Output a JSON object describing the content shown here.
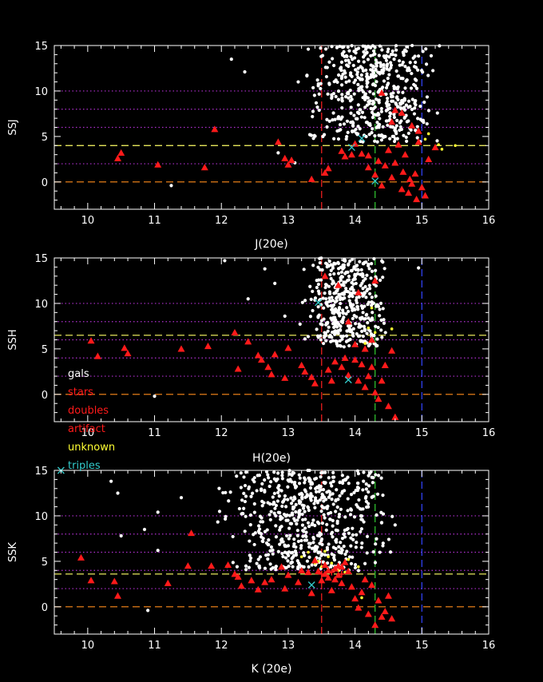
{
  "colors": {
    "background": "#000000",
    "axes": "#ffffff",
    "gals": "#ffffff",
    "stars": "#ff1a1a",
    "doubles": "#ff1a1a",
    "artifact": "#ff1a1a",
    "unknown": "#ffff33",
    "triples": "#33cccc",
    "grid_dotted": "#b030d0",
    "line_orange": "#ff8c1a",
    "line_yellow": "#ffff66",
    "line_red": "#ff2020",
    "line_green": "#33cc33",
    "line_blue": "#3344ff"
  },
  "legend": {
    "items": [
      {
        "label": "gals",
        "color": "#ffffff"
      },
      {
        "label": "stars",
        "color": "#ff1a1a"
      },
      {
        "label": "doubles",
        "color": "#ff1a1a"
      },
      {
        "label": "artifact",
        "color": "#ff1a1a"
      },
      {
        "label": "unknown",
        "color": "#ffff33"
      },
      {
        "label": "triples",
        "color": "#33cccc"
      }
    ]
  },
  "chart_data": [
    {
      "type": "scatter",
      "xlabel": "J(20e)",
      "ylabel": "SSJ",
      "xlim": [
        9.5,
        16
      ],
      "ylim": [
        -3,
        15
      ],
      "xticks": [
        10,
        11,
        12,
        13,
        14,
        15,
        16
      ],
      "yticks": [
        0,
        5,
        10,
        15
      ],
      "hlines": [
        {
          "y": 0,
          "color": "#ff8c1a",
          "style": "dashed"
        },
        {
          "y": 4,
          "color": "#ffff66",
          "style": "dashed"
        },
        {
          "y": 2,
          "color": "#b030d0",
          "style": "dotted"
        },
        {
          "y": 6,
          "color": "#b030d0",
          "style": "dotted"
        },
        {
          "y": 8,
          "color": "#b030d0",
          "style": "dotted"
        },
        {
          "y": 10,
          "color": "#b030d0",
          "style": "dotted"
        }
      ],
      "vlines": [
        {
          "x": 13.5,
          "color": "#ff2020",
          "style": "dashed"
        },
        {
          "x": 14.3,
          "color": "#33cc33",
          "style": "dashed"
        },
        {
          "x": 15.0,
          "color": "#3344ff",
          "style": "dashed"
        }
      ],
      "stars": [
        [
          10.45,
          2.6
        ],
        [
          10.5,
          3.2
        ],
        [
          11.05,
          1.9
        ],
        [
          11.75,
          1.6
        ],
        [
          11.9,
          5.8
        ],
        [
          12.85,
          4.4
        ],
        [
          12.95,
          2.6
        ],
        [
          13.0,
          1.9
        ],
        [
          13.05,
          2.4
        ],
        [
          13.35,
          0.3
        ],
        [
          13.55,
          1.0
        ],
        [
          13.6,
          1.5
        ],
        [
          13.8,
          3.4
        ],
        [
          13.85,
          2.8
        ],
        [
          13.95,
          3.0
        ],
        [
          14.0,
          4.2
        ],
        [
          14.1,
          3.1
        ],
        [
          14.2,
          1.6
        ],
        [
          14.3,
          0.8
        ],
        [
          14.4,
          -0.4
        ],
        [
          14.45,
          1.8
        ],
        [
          14.5,
          3.5
        ],
        [
          14.55,
          0.5
        ],
        [
          14.6,
          2.1
        ],
        [
          14.65,
          4.1
        ],
        [
          14.7,
          -0.8
        ],
        [
          14.72,
          1.1
        ],
        [
          14.75,
          3.0
        ],
        [
          14.8,
          -1.2
        ],
        [
          14.82,
          0.3
        ],
        [
          14.85,
          -0.2
        ],
        [
          14.9,
          0.9
        ],
        [
          14.92,
          -1.9
        ],
        [
          14.95,
          4.4
        ],
        [
          15.0,
          -0.6
        ],
        [
          15.05,
          -1.5
        ],
        [
          15.1,
          2.5
        ],
        [
          15.2,
          3.8
        ],
        [
          14.7,
          7.6
        ],
        [
          14.85,
          6.2
        ],
        [
          14.95,
          5.6
        ],
        [
          14.6,
          7.9
        ],
        [
          14.4,
          9.8
        ],
        [
          14.55,
          6.6
        ],
        [
          14.2,
          2.9
        ],
        [
          14.35,
          2.3
        ]
      ],
      "triples": [
        [
          13.95,
          3.8
        ],
        [
          14.1,
          4.8
        ],
        [
          14.3,
          0.1
        ]
      ],
      "unknown": [
        [
          15.05,
          4.7
        ],
        [
          15.25,
          4.1
        ],
        [
          15.1,
          5.3
        ],
        [
          15.3,
          3.6
        ],
        [
          15.5,
          4.0
        ]
      ],
      "artifact": [],
      "gal_bounds": {
        "xmin": 12.8,
        "xmax": 15.3,
        "ymin": 2.5,
        "ymax": 15
      },
      "gal_count": 520,
      "gal_outliers": [
        [
          11.25,
          -0.4
        ],
        [
          12.15,
          13.5
        ],
        [
          12.35,
          12.1
        ],
        [
          12.85,
          3.2
        ],
        [
          13.1,
          2.1
        ],
        [
          13.15,
          11.0
        ],
        [
          13.3,
          14.6
        ]
      ]
    },
    {
      "type": "scatter",
      "xlabel": "H(20e)",
      "ylabel": "SSH",
      "xlim": [
        9.5,
        16
      ],
      "ylim": [
        -3,
        15
      ],
      "xticks": [
        10,
        11,
        12,
        13,
        14,
        15,
        16
      ],
      "yticks": [
        0,
        5,
        10,
        15
      ],
      "hlines": [
        {
          "y": 0,
          "color": "#ff8c1a",
          "style": "dashed"
        },
        {
          "y": 6.5,
          "color": "#ffff66",
          "style": "dashed"
        },
        {
          "y": 2,
          "color": "#b030d0",
          "style": "dotted"
        },
        {
          "y": 4,
          "color": "#b030d0",
          "style": "dotted"
        },
        {
          "y": 6,
          "color": "#b030d0",
          "style": "dotted"
        },
        {
          "y": 8,
          "color": "#b030d0",
          "style": "dotted"
        },
        {
          "y": 10,
          "color": "#b030d0",
          "style": "dotted"
        }
      ],
      "vlines": [
        {
          "x": 13.5,
          "color": "#ff2020",
          "style": "dashed"
        },
        {
          "x": 14.3,
          "color": "#33cc33",
          "style": "dashed"
        },
        {
          "x": 15.0,
          "color": "#3344ff",
          "style": "dashed"
        }
      ],
      "stars": [
        [
          10.05,
          5.9
        ],
        [
          10.15,
          4.2
        ],
        [
          10.55,
          5.1
        ],
        [
          10.6,
          4.5
        ],
        [
          11.4,
          5.0
        ],
        [
          11.8,
          5.3
        ],
        [
          12.2,
          6.8
        ],
        [
          12.25,
          2.8
        ],
        [
          12.4,
          5.8
        ],
        [
          12.55,
          4.3
        ],
        [
          12.6,
          3.8
        ],
        [
          12.7,
          3.0
        ],
        [
          12.75,
          2.2
        ],
        [
          12.8,
          4.4
        ],
        [
          12.95,
          1.8
        ],
        [
          13.0,
          5.1
        ],
        [
          13.2,
          3.2
        ],
        [
          13.25,
          2.5
        ],
        [
          13.35,
          1.9
        ],
        [
          13.4,
          1.2
        ],
        [
          13.6,
          2.7
        ],
        [
          13.65,
          1.5
        ],
        [
          13.7,
          3.6
        ],
        [
          13.8,
          3.0
        ],
        [
          13.9,
          2.1
        ],
        [
          14.0,
          5.5
        ],
        [
          14.05,
          1.5
        ],
        [
          14.1,
          3.3
        ],
        [
          14.15,
          0.8
        ],
        [
          14.2,
          2.0
        ],
        [
          14.25,
          3.0
        ],
        [
          14.3,
          0.2
        ],
        [
          14.35,
          -0.5
        ],
        [
          14.4,
          1.5
        ],
        [
          14.45,
          3.2
        ],
        [
          14.5,
          -1.3
        ],
        [
          14.55,
          4.8
        ],
        [
          14.6,
          -2.5
        ],
        [
          14.3,
          12.5
        ],
        [
          14.05,
          11.2
        ],
        [
          13.55,
          13.0
        ],
        [
          13.75,
          12.0
        ],
        [
          13.9,
          8.0
        ],
        [
          14.15,
          5.0
        ],
        [
          14.25,
          6.0
        ],
        [
          13.85,
          4.0
        ],
        [
          14.0,
          3.8
        ]
      ],
      "triples": [
        [
          13.45,
          10.1
        ],
        [
          13.9,
          1.6
        ]
      ],
      "unknown": [
        [
          14.2,
          7.3
        ],
        [
          14.25,
          9.5
        ],
        [
          14.3,
          6.8
        ],
        [
          14.55,
          7.2
        ],
        [
          14.15,
          5.6
        ]
      ],
      "artifact": [],
      "gal_bounds": {
        "xmin": 12.9,
        "xmax": 14.5,
        "ymin": 3.5,
        "ymax": 15
      },
      "gal_count": 440,
      "gal_outliers": [
        [
          11.0,
          -0.2
        ],
        [
          12.05,
          14.7
        ],
        [
          12.4,
          10.5
        ],
        [
          12.65,
          13.8
        ],
        [
          12.8,
          12.2
        ],
        [
          12.95,
          8.6
        ],
        [
          13.25,
          6.1
        ],
        [
          14.95,
          13.9
        ]
      ]
    },
    {
      "type": "scatter",
      "xlabel": "K (20e)",
      "ylabel": "SSK",
      "xlim": [
        9.5,
        16
      ],
      "ylim": [
        -3,
        15
      ],
      "xticks": [
        10,
        11,
        12,
        13,
        14,
        15,
        16
      ],
      "yticks": [
        0,
        5,
        10,
        15
      ],
      "hlines": [
        {
          "y": 0,
          "color": "#ff8c1a",
          "style": "dashed"
        },
        {
          "y": 3.6,
          "color": "#ffff66",
          "style": "dashed"
        },
        {
          "y": 2,
          "color": "#b030d0",
          "style": "dotted"
        },
        {
          "y": 4,
          "color": "#b030d0",
          "style": "dotted"
        },
        {
          "y": 6,
          "color": "#b030d0",
          "style": "dotted"
        },
        {
          "y": 8,
          "color": "#b030d0",
          "style": "dotted"
        },
        {
          "y": 10,
          "color": "#b030d0",
          "style": "dotted"
        }
      ],
      "vlines": [
        {
          "x": 13.5,
          "color": "#ff2020",
          "style": "dashed"
        },
        {
          "x": 14.3,
          "color": "#33cc33",
          "style": "dashed"
        },
        {
          "x": 15.0,
          "color": "#3344ff",
          "style": "dashed"
        }
      ],
      "stars": [
        [
          9.9,
          5.4
        ],
        [
          10.05,
          2.9
        ],
        [
          10.4,
          2.8
        ],
        [
          10.45,
          1.2
        ],
        [
          11.2,
          2.6
        ],
        [
          11.5,
          4.5
        ],
        [
          11.55,
          8.1
        ],
        [
          11.85,
          4.5
        ],
        [
          12.1,
          4.6
        ],
        [
          12.2,
          3.6
        ],
        [
          12.25,
          3.3
        ],
        [
          12.3,
          2.3
        ],
        [
          12.45,
          2.9
        ],
        [
          12.55,
          1.9
        ],
        [
          12.65,
          2.7
        ],
        [
          12.75,
          3.0
        ],
        [
          12.9,
          4.4
        ],
        [
          12.95,
          2.0
        ],
        [
          13.0,
          3.5
        ],
        [
          13.15,
          2.7
        ],
        [
          13.2,
          4.0
        ],
        [
          13.3,
          3.8
        ],
        [
          13.35,
          1.5
        ],
        [
          13.4,
          5.1
        ],
        [
          13.45,
          3.9
        ],
        [
          13.5,
          2.9
        ],
        [
          13.55,
          4.6
        ],
        [
          13.6,
          3.2
        ],
        [
          13.65,
          1.8
        ],
        [
          13.7,
          4.2
        ],
        [
          13.75,
          3.5
        ],
        [
          13.8,
          2.6
        ],
        [
          13.85,
          4.9
        ],
        [
          13.9,
          3.9
        ],
        [
          13.95,
          2.2
        ],
        [
          14.0,
          0.9
        ],
        [
          14.05,
          -0.1
        ],
        [
          14.1,
          1.6
        ],
        [
          14.15,
          3.0
        ],
        [
          14.2,
          -0.8
        ],
        [
          14.25,
          2.4
        ],
        [
          14.3,
          -2.0
        ],
        [
          14.35,
          0.7
        ],
        [
          14.4,
          -1.1
        ],
        [
          14.45,
          -0.5
        ],
        [
          14.5,
          1.2
        ],
        [
          14.55,
          -1.3
        ],
        [
          13.6,
          4.0
        ],
        [
          13.7,
          3.0
        ],
        [
          13.8,
          4.4
        ],
        [
          13.55,
          3.6
        ],
        [
          13.75,
          4.5
        ]
      ],
      "triples": [
        [
          9.6,
          15.0
        ],
        [
          13.35,
          2.4
        ]
      ],
      "unknown": [
        [
          13.2,
          5.5
        ],
        [
          13.3,
          6.0
        ],
        [
          13.45,
          5.0
        ],
        [
          13.55,
          6.1
        ],
        [
          13.6,
          5.5
        ],
        [
          13.7,
          4.2
        ],
        [
          13.4,
          4.8
        ],
        [
          13.5,
          4.4
        ],
        [
          13.65,
          4.8
        ],
        [
          13.75,
          4.0
        ],
        [
          13.85,
          3.8
        ],
        [
          13.9,
          5.2
        ],
        [
          14.05,
          4.4
        ],
        [
          14.1,
          1.0
        ]
      ],
      "artifact": [
        [
          13.5,
          3.6
        ],
        [
          13.65,
          3.8
        ],
        [
          13.8,
          3.6
        ]
      ],
      "gal_bounds": {
        "xmin": 11.3,
        "xmax": 14.6,
        "ymin": 2.0,
        "ymax": 15
      },
      "gal_count": 600,
      "gal_outliers": [
        [
          10.35,
          13.8
        ],
        [
          10.45,
          12.5
        ],
        [
          10.5,
          7.8
        ],
        [
          10.85,
          8.5
        ],
        [
          10.9,
          -0.4
        ],
        [
          11.05,
          6.2
        ],
        [
          11.05,
          10.4
        ],
        [
          11.4,
          12.0
        ],
        [
          14.6,
          9.0
        ]
      ]
    }
  ]
}
